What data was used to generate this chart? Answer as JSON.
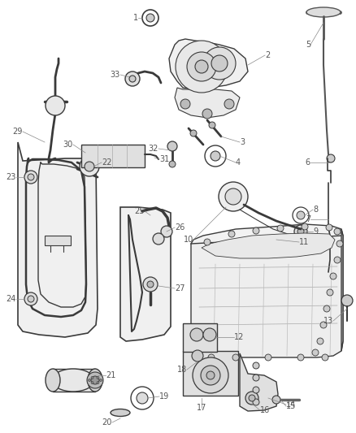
{
  "bg_color": "#ffffff",
  "line_color": "#3a3a3a",
  "label_color": "#555555",
  "figsize": [
    4.38,
    5.33
  ],
  "dpi": 100,
  "label_fontsize": 7.0
}
